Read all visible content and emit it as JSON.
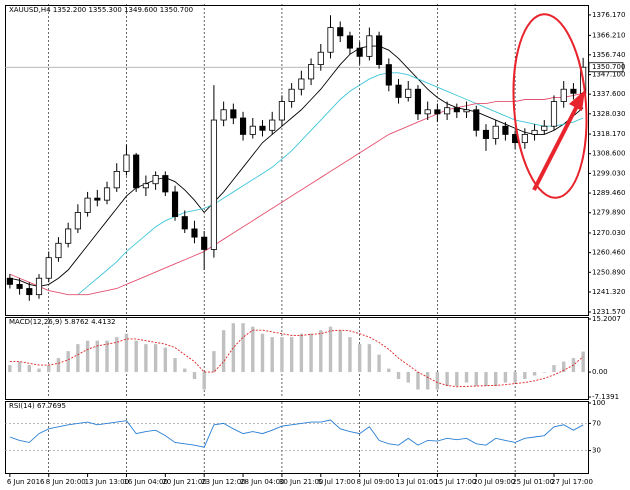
{
  "chart_data": [
    {
      "type": "candlestick",
      "title": "XAUUSD,H4 1352.200 1355.300 1349.600 1350.700",
      "categories": [
        "6 Jun 2016",
        null,
        null,
        null,
        "8 Jun 20:00",
        null,
        null,
        null,
        "13 Jun 13:00",
        null,
        null,
        null,
        "16 Jun 04:00",
        null,
        null,
        null,
        "20 Jun 21:00",
        null,
        null,
        null,
        "23 Jun 12:00",
        null,
        null,
        null,
        "28 Jun 04:00",
        null,
        null,
        null,
        "30 Jun 21:00",
        null,
        null,
        null,
        "5 Jul 17:00",
        null,
        null,
        null,
        "8 Jul 09:00",
        null,
        null,
        null,
        "13 Jul 01:00",
        null,
        null,
        null,
        "15 Jul 17:00",
        null,
        null,
        null,
        "20 Jul 09:00",
        null,
        null,
        null,
        "25 Jul 01:00",
        null,
        null,
        null,
        "27 Jul 17:00",
        null,
        null,
        null
      ],
      "open": [
        1248,
        1245,
        1243,
        1240,
        1248,
        1258,
        1265,
        1272,
        1280,
        1287,
        1286,
        1292,
        1300,
        1308,
        1292,
        1294,
        1298,
        1290,
        1278,
        1272,
        1268,
        1262,
        1325,
        1330,
        1326,
        1318,
        1322,
        1320,
        1325,
        1334,
        1340,
        1345,
        1352,
        1358,
        1370,
        1366,
        1360,
        1356,
        1366,
        1352,
        1342,
        1336,
        1340,
        1328,
        1330,
        1328,
        1331,
        1329,
        1330,
        1320,
        1316,
        1322,
        1318,
        1314,
        1318,
        1320,
        1322,
        1334,
        1340,
        1338
      ],
      "high": [
        1250,
        1248,
        1246,
        1250,
        1261,
        1268,
        1275,
        1284,
        1290,
        1291,
        1295,
        1304,
        1313,
        1309,
        1298,
        1300,
        1300,
        1293,
        1281,
        1276,
        1271,
        1342,
        1334,
        1333,
        1329,
        1326,
        1325,
        1329,
        1337,
        1343,
        1349,
        1355,
        1362,
        1376,
        1373,
        1368,
        1363,
        1370,
        1368,
        1355,
        1345,
        1344,
        1342,
        1334,
        1333,
        1334,
        1333,
        1334,
        1332,
        1323,
        1325,
        1324,
        1320,
        1321,
        1323,
        1325,
        1337,
        1344,
        1343,
        1355.3
      ],
      "low": [
        1243,
        1240,
        1237,
        1238,
        1246,
        1256,
        1263,
        1270,
        1278,
        1283,
        1284,
        1290,
        1298,
        1290,
        1288,
        1291,
        1288,
        1276,
        1270,
        1265,
        1252,
        1258,
        1322,
        1323,
        1315,
        1316,
        1317,
        1318,
        1322,
        1331,
        1337,
        1342,
        1349,
        1355,
        1363,
        1357,
        1352,
        1354,
        1350,
        1339,
        1333,
        1334,
        1325,
        1325,
        1324,
        1325,
        1326,
        1326,
        1317,
        1310,
        1313,
        1315,
        1311,
        1311,
        1315,
        1318,
        1320,
        1331,
        1335,
        1337
      ],
      "close": [
        1245,
        1243,
        1240,
        1248,
        1258,
        1265,
        1272,
        1280,
        1287,
        1286,
        1292,
        1300,
        1308,
        1292,
        1294,
        1298,
        1290,
        1278,
        1272,
        1268,
        1262,
        1325,
        1330,
        1326,
        1318,
        1322,
        1320,
        1325,
        1334,
        1340,
        1345,
        1352,
        1358,
        1370,
        1366,
        1360,
        1356,
        1366,
        1352,
        1342,
        1336,
        1340,
        1328,
        1330,
        1328,
        1331,
        1329,
        1330,
        1320,
        1316,
        1322,
        1318,
        1314,
        1318,
        1320,
        1322,
        1334,
        1340,
        1338,
        1350.7
      ],
      "up_color": "#ffffff",
      "down_color": "#000000",
      "candle_outline": "#000000",
      "series": [
        {
          "color": "#000000",
          "values": [
            1248,
            1247,
            1245,
            1244,
            1245,
            1248,
            1252,
            1258,
            1264,
            1270,
            1276,
            1282,
            1288,
            1292,
            1294,
            1296,
            1297,
            1295,
            1291,
            1286,
            1280,
            1285,
            1290,
            1296,
            1302,
            1308,
            1314,
            1318,
            1322,
            1326,
            1330,
            1335,
            1340,
            1346,
            1352,
            1357,
            1360,
            1361,
            1361,
            1359,
            1355,
            1350,
            1345,
            1340,
            1336,
            1333,
            1331,
            1330,
            1329,
            1327,
            1325,
            1323,
            1321,
            1319,
            1318,
            1318,
            1320,
            1323,
            1327,
            1331
          ]
        },
        {
          "color": "#3ec6d6",
          "values": [
            null,
            null,
            null,
            null,
            null,
            null,
            null,
            1240,
            1244,
            1248,
            1252,
            1256,
            1261,
            1265,
            1269,
            1273,
            1276,
            1278,
            1280,
            1281,
            1282,
            1284,
            1287,
            1290,
            1293,
            1296,
            1299,
            1302,
            1306,
            1310,
            1315,
            1320,
            1325,
            1330,
            1335,
            1339,
            1342,
            1345,
            1347,
            1348,
            1348,
            1347,
            1345,
            1343,
            1341,
            1339,
            1337,
            1335,
            1333,
            1331,
            1329,
            1327,
            1325,
            1324,
            1323,
            1322,
            1322,
            1323,
            1324,
            1326
          ]
        },
        {
          "color": "#e4506e",
          "values": [
            1250,
            1248,
            1246,
            1244,
            1242,
            1241,
            1240,
            1240,
            1240,
            1241,
            1242,
            1243,
            1245,
            1247,
            1249,
            1251,
            1253,
            1255,
            1257,
            1259,
            1261,
            1264,
            1267,
            1270,
            1273,
            1276,
            1279,
            1282,
            1285,
            1288,
            1291,
            1294,
            1297,
            1300,
            1303,
            1306,
            1309,
            1312,
            1315,
            1318,
            1320,
            1322,
            1324,
            1326,
            1328,
            1330,
            1331,
            1332,
            1333,
            1333,
            1334,
            1334,
            1334,
            1335,
            1335,
            1335,
            1336,
            1336,
            1337,
            1338
          ]
        }
      ],
      "current_price": {
        "value": 1350.7,
        "label": "1350.700"
      },
      "ylim": [
        1230.1,
        1381.0
      ],
      "yticks": [
        {
          "value": 1376.17,
          "label": "1376.170"
        },
        {
          "value": 1366.21,
          "label": "1366.210"
        },
        {
          "value": 1356.74,
          "label": "1356.740"
        },
        {
          "value": 1347.1,
          "label": "1347.100"
        },
        {
          "value": 1337.6,
          "label": "1337.600"
        },
        {
          "value": 1328.03,
          "label": "1328.030"
        },
        {
          "value": 1318.17,
          "label": "1318.170"
        },
        {
          "value": 1308.6,
          "label": "1308.600"
        },
        {
          "value": 1299.03,
          "label": "1299.030"
        },
        {
          "value": 1289.46,
          "label": "1289.460"
        },
        {
          "value": 1279.89,
          "label": "1279.890"
        },
        {
          "value": 1270.03,
          "label": "1270.030"
        },
        {
          "value": 1260.46,
          "label": "1260.460"
        },
        {
          "value": 1250.89,
          "label": "1250.890"
        },
        {
          "value": 1241.32,
          "label": "1241.320"
        },
        {
          "value": 1231.57,
          "label": "1231.570"
        }
      ],
      "grid": true
    },
    {
      "type": "macd",
      "title": "MACD(12,26,9) 5.8762 4.4132",
      "values": [
        2,
        3,
        2,
        1,
        2,
        4,
        6,
        8,
        9,
        9,
        9,
        10,
        11,
        9,
        8,
        8,
        7,
        4,
        1,
        -2,
        -5,
        6,
        12,
        14,
        14,
        13,
        11,
        10,
        10,
        10,
        11,
        11,
        12,
        13,
        12,
        10,
        8,
        8,
        5,
        1,
        -2,
        -3,
        -5,
        -5,
        -5,
        -4,
        -4,
        -3,
        -4,
        -4,
        -4,
        -3,
        -3,
        -2,
        -1,
        0,
        2,
        3,
        4,
        5.8762
      ],
      "signal": [
        3,
        3,
        2.5,
        2,
        2,
        2.5,
        3.5,
        5,
        6.5,
        7.5,
        8,
        8.5,
        9.5,
        9.5,
        9,
        8.5,
        8,
        7,
        5,
        3,
        0,
        0,
        3,
        7,
        10,
        12,
        12,
        11.5,
        11,
        10.5,
        10.5,
        10.8,
        11,
        11.8,
        12,
        11.8,
        11,
        10,
        8.5,
        6.5,
        4,
        2,
        0,
        -1.5,
        -3,
        -3.8,
        -4.2,
        -4.1,
        -4,
        -3.9,
        -3.8,
        -3.6,
        -3.3,
        -3,
        -2.5,
        -1.8,
        -0.8,
        0.5,
        2,
        4.4132
      ],
      "color": "#c0c0c0",
      "signal_color": "#e02020",
      "ylim": [
        -7.1391,
        15.2007
      ],
      "yticks": [
        15.2007,
        {
          "value": 0,
          "label": "0.00"
        },
        -7.1391
      ]
    },
    {
      "type": "line",
      "title": "RSI(14) 67.7695",
      "values": [
        50,
        45,
        42,
        55,
        62,
        65,
        68,
        70,
        72,
        68,
        70,
        72,
        74,
        55,
        58,
        60,
        52,
        42,
        40,
        38,
        35,
        68,
        70,
        62,
        55,
        58,
        55,
        60,
        66,
        68,
        70,
        72,
        72,
        75,
        62,
        58,
        55,
        65,
        45,
        40,
        38,
        48,
        38,
        45,
        44,
        48,
        46,
        48,
        40,
        38,
        48,
        45,
        42,
        48,
        50,
        52,
        65,
        68,
        60,
        67.7695
      ],
      "color": "#2a7fd4",
      "ylim": [
        0,
        100
      ],
      "yticks": [
        100,
        70,
        30
      ],
      "grid": true
    }
  ]
}
